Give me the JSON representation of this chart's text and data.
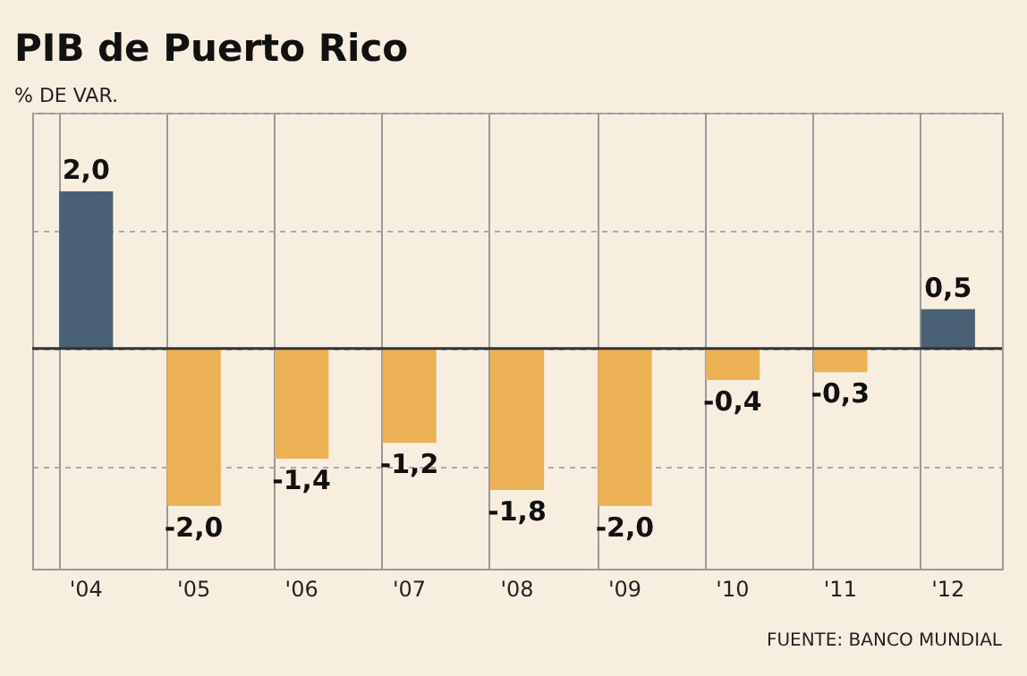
{
  "chart_data": {
    "type": "bar",
    "title": "PIB de Puerto Rico",
    "subtitle": "% DE VAR.",
    "categories": [
      "'04",
      "'05",
      "'06",
      "'07",
      "'08",
      "'09",
      "'10",
      "'11",
      "'12"
    ],
    "values": [
      2.0,
      -2.0,
      -1.4,
      -1.2,
      -1.8,
      -2.0,
      -0.4,
      -0.3,
      0.5
    ],
    "colors": [
      "#4a6075",
      "#ecb055",
      "#ecb055",
      "#ecb055",
      "#ecb055",
      "#ecb055",
      "#ecb055",
      "#ecb055",
      "#4a6075"
    ],
    "value_labels": [
      "2,0",
      "-2,0",
      "-1,4",
      "-1,2",
      "-1,8",
      "-2,0",
      "-0,4",
      "-0,3",
      "0,5"
    ],
    "ylim": [
      -2.8,
      3.0
    ],
    "yticks": [
      {
        "value": -1.5,
        "label": null
      },
      {
        "value": 0,
        "label": null
      },
      {
        "value": 1.5,
        "label": null
      },
      {
        "value": 3.0,
        "label": null
      }
    ],
    "ref_lines": [
      {
        "axis": "y",
        "value": 0
      }
    ],
    "grid": true,
    "tick_labels": "x",
    "annotations": [
      "FUENTE: BANCO MUNDIAL"
    ]
  }
}
